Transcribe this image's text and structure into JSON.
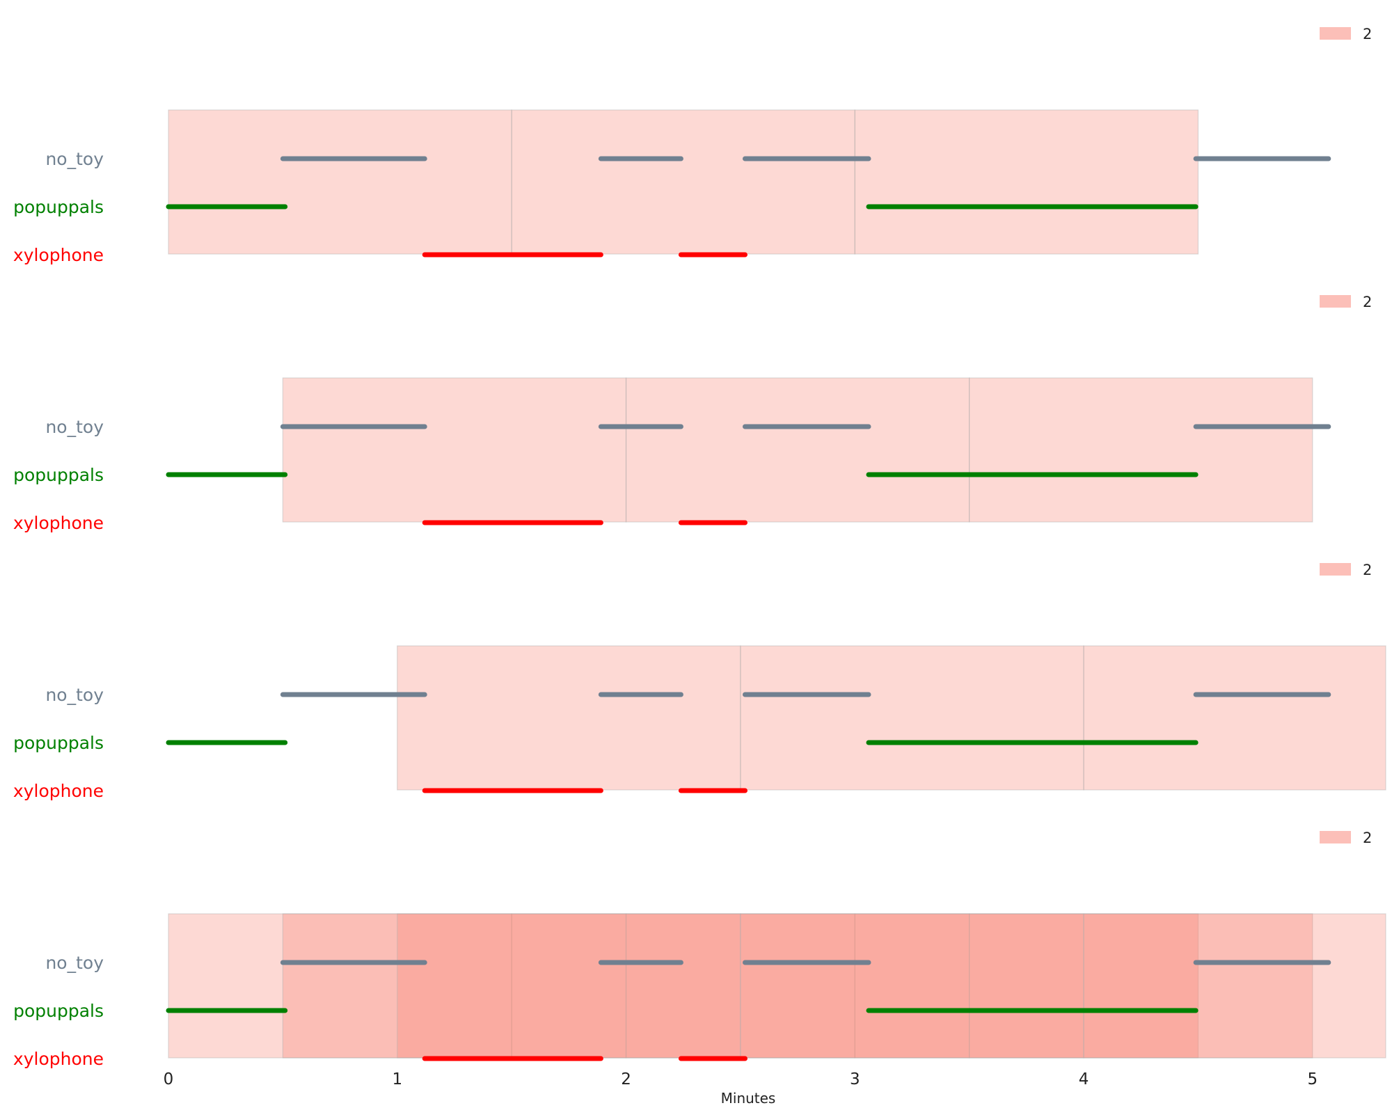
{
  "chart_data": {
    "type": "timeline",
    "xlabel": "Minutes",
    "xlim": [
      0,
      5.32
    ],
    "x_ticks": [
      0,
      1,
      2,
      3,
      4,
      5
    ],
    "categories": [
      "no_toy",
      "popuppals",
      "xylophone"
    ],
    "category_colors": {
      "no_toy": "#708090",
      "popuppals": "#008000",
      "xylophone": "#ff0000"
    },
    "segments": {
      "no_toy": [
        [
          0.5,
          1.12
        ],
        [
          1.89,
          2.24
        ],
        [
          2.52,
          3.06
        ],
        [
          4.49,
          5.07
        ]
      ],
      "popuppals": [
        [
          0.0,
          0.51
        ],
        [
          3.06,
          4.49
        ]
      ],
      "xylophone": [
        [
          1.12,
          1.89
        ],
        [
          2.24,
          2.52
        ]
      ]
    },
    "shade_color": "#fa8072",
    "panels": [
      {
        "legend": "2",
        "windows": [
          [
            0.0,
            1.5
          ],
          [
            1.5,
            3.0
          ],
          [
            3.0,
            4.5
          ]
        ]
      },
      {
        "legend": "2",
        "windows": [
          [
            0.5,
            2.0
          ],
          [
            2.0,
            3.5
          ],
          [
            3.5,
            5.0
          ]
        ]
      },
      {
        "legend": "2",
        "windows": [
          [
            1.0,
            2.5
          ],
          [
            2.5,
            4.0
          ],
          [
            4.0,
            5.32
          ]
        ]
      },
      {
        "legend": "2",
        "windows": [
          [
            0.0,
            1.5
          ],
          [
            1.5,
            3.0
          ],
          [
            3.0,
            4.5
          ],
          [
            0.5,
            2.0
          ],
          [
            2.0,
            3.5
          ],
          [
            3.5,
            5.0
          ],
          [
            1.0,
            2.5
          ],
          [
            2.5,
            4.0
          ],
          [
            4.0,
            5.32
          ]
        ]
      }
    ]
  }
}
